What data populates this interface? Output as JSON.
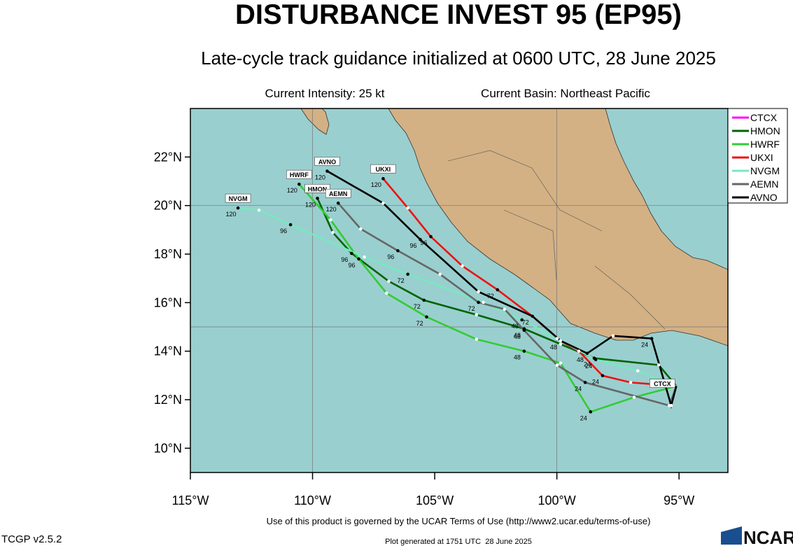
{
  "chart_data": {
    "type": "track",
    "title": "DISTURBANCE INVEST 95 (EP95)",
    "subtitle": "Late-cycle track guidance initialized at 0600 UTC, 28 June 2025",
    "info": [
      "Current Intensity: 25 kt",
      "Current Basin: Northeast Pacific"
    ],
    "xlim": [
      -115,
      -93
    ],
    "ylim": [
      9,
      24
    ],
    "xticks": [
      {
        "value": -115,
        "label": "115°W"
      },
      {
        "value": -110,
        "label": "110°W"
      },
      {
        "value": -105,
        "label": "105°W"
      },
      {
        "value": -100,
        "label": "100°W"
      },
      {
        "value": -95,
        "label": "95°W"
      }
    ],
    "yticks": [
      {
        "value": 10,
        "label": "10°N"
      },
      {
        "value": 12,
        "label": "12°N"
      },
      {
        "value": 14,
        "label": "14°N"
      },
      {
        "value": 16,
        "label": "16°N"
      },
      {
        "value": 18,
        "label": "18°N"
      },
      {
        "value": 20,
        "label": "20°N"
      },
      {
        "value": 22,
        "label": "22°N"
      }
    ],
    "grid_lines": {
      "lon": [
        -110,
        -100
      ],
      "lat": [
        15,
        20
      ]
    },
    "legend": "outside-top-right",
    "series": [
      {
        "name": "CTCX",
        "color": "#ff00ff",
        "x": [
          -95.11,
          -95.3
        ],
        "values": [
          12.56,
          12.0
        ]
      },
      {
        "name": "HMON",
        "color": "#006400",
        "x": [
          -95.11,
          -95.83,
          -98.47,
          -99.85,
          -101.34,
          -103.29,
          -105.44,
          -106.88,
          -108.4,
          -109.17,
          -109.8
        ],
        "values": [
          12.56,
          13.43,
          13.71,
          14.29,
          14.92,
          15.5,
          16.1,
          16.88,
          18.03,
          18.89,
          20.3
        ],
        "hour_labels": [
          null,
          null,
          24,
          null,
          48,
          null,
          72,
          null,
          96,
          null,
          120
        ]
      },
      {
        "name": "HWRF",
        "color": "#33cc33",
        "x": [
          -95.11,
          -96.84,
          -98.62,
          -99.85,
          -101.34,
          -103.29,
          -105.33,
          -106.97,
          -108.11,
          -109.26,
          -110.55
        ],
        "values": [
          12.56,
          12.1,
          11.5,
          13.51,
          14.0,
          14.49,
          15.41,
          16.39,
          17.8,
          19.41,
          20.88
        ],
        "hour_labels": [
          null,
          null,
          24,
          null,
          48,
          null,
          72,
          null,
          96,
          null,
          120
        ]
      },
      {
        "name": "UKXI",
        "color": "#ee1111",
        "x": [
          -95.11,
          -96.98,
          -98.13,
          -99.1,
          -99.85,
          -101.0,
          -102.43,
          -103.87,
          -105.16,
          -106.1,
          -107.11
        ],
        "values": [
          12.56,
          12.71,
          12.99,
          14.0,
          14.43,
          15.44,
          16.53,
          17.51,
          18.72,
          19.9,
          21.11
        ],
        "hour_labels": [
          null,
          null,
          24,
          null,
          48,
          null,
          72,
          null,
          96,
          null,
          120
        ]
      },
      {
        "name": "NVGM",
        "color": "#77e8c0",
        "x": [
          -95.11,
          -96.69,
          -98.41,
          -99.99,
          -101.43,
          -103.01,
          -106.1,
          -107.88,
          -110.9,
          -112.19,
          -113.05
        ],
        "values": [
          12.56,
          13.19,
          13.65,
          14.52,
          15.29,
          16.01,
          17.17,
          17.88,
          19.21,
          19.81,
          19.9
        ],
        "hour_labels": [
          null,
          null,
          24,
          null,
          48,
          null,
          72,
          null,
          96,
          null,
          120
        ]
      },
      {
        "name": "AEMN",
        "color": "#666666",
        "x": [
          -95.11,
          -95.4,
          -98.84,
          -99.99,
          -101.34,
          -102.14,
          -103.21,
          -104.78,
          -106.51,
          -108.03,
          -108.95
        ],
        "values": [
          12.56,
          11.76,
          12.71,
          13.42,
          14.86,
          15.73,
          16.01,
          17.17,
          18.14,
          19.04,
          20.1
        ],
        "hour_labels": [
          null,
          null,
          24,
          null,
          48,
          null,
          72,
          null,
          96,
          null,
          120
        ]
      },
      {
        "name": "AVNO",
        "color": "#000000",
        "x": [
          -95.11,
          -95.32,
          -96.12,
          -97.7,
          -98.76,
          -99.85,
          -101.0,
          -103.21,
          -105.59,
          -107.11,
          -109.4
        ],
        "values": [
          12.56,
          11.76,
          14.52,
          14.63,
          13.91,
          14.43,
          15.44,
          16.45,
          18.6,
          20.1,
          21.42
        ],
        "hour_labels": [
          null,
          null,
          24,
          null,
          48,
          null,
          72,
          null,
          96,
          null,
          120
        ]
      }
    ],
    "footer": {
      "terms": "Use of this product is governed by the UCAR Terms of Use (http://www2.ucar.edu/terms-of-use)",
      "version": "TCGP v2.5.2",
      "generated": "Plot generated at 1751 UTC  28 June 2025",
      "logo": "NCAR"
    }
  }
}
